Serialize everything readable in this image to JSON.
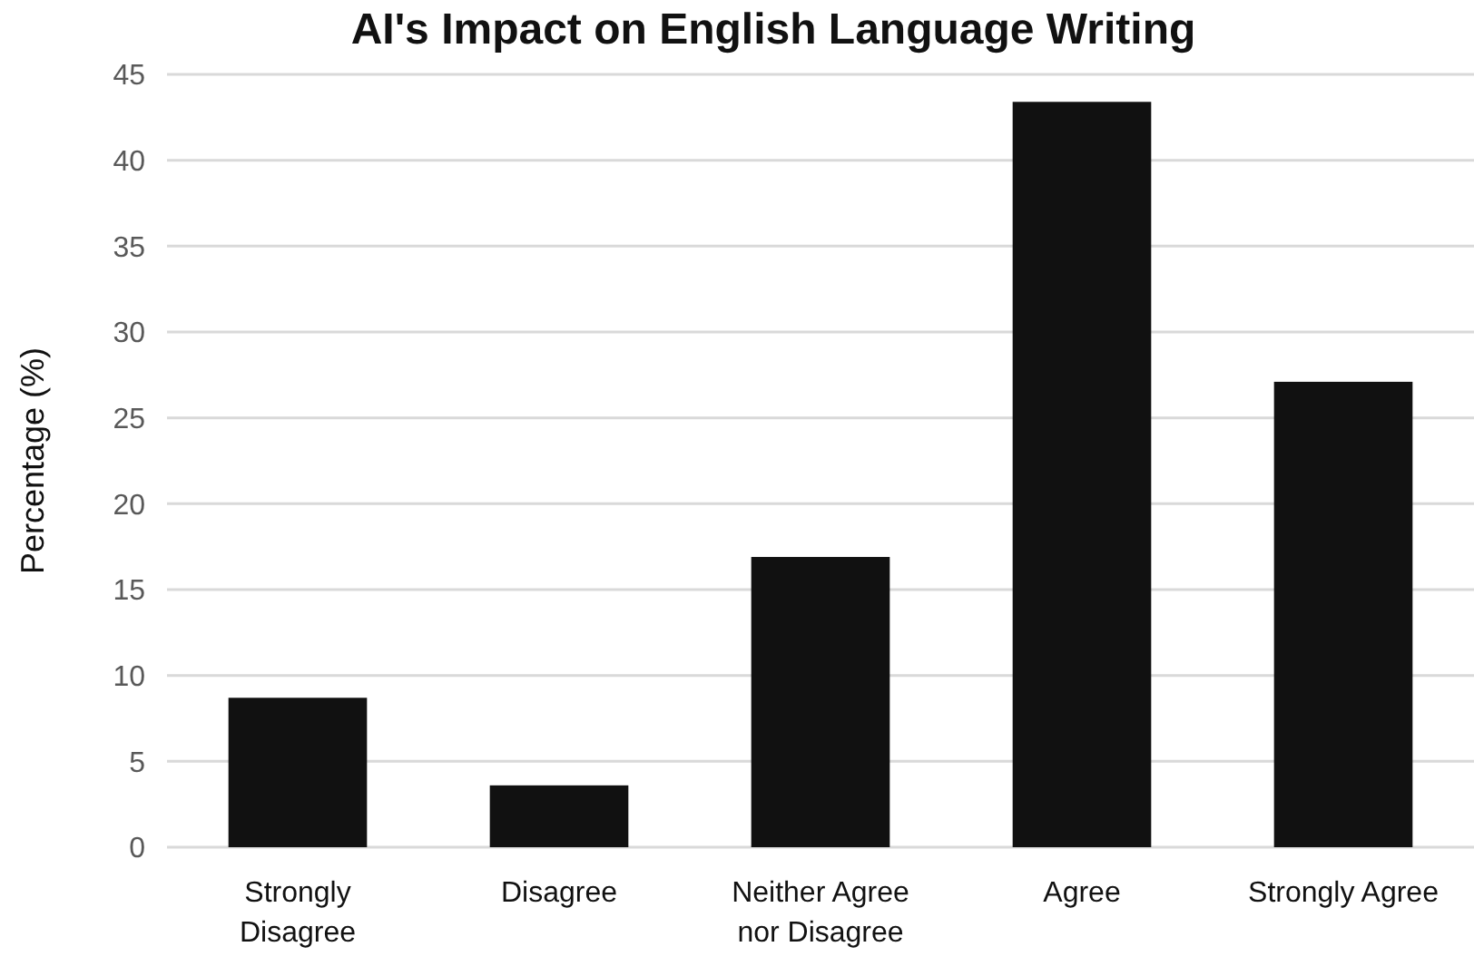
{
  "chart_data": {
    "type": "bar",
    "title": "AI's Impact on English Language Writing",
    "ylabel": "Percentage (%)",
    "categories": [
      "Strongly Disagree",
      "Disagree",
      "Neither Agree nor Disagree",
      "Agree",
      "Strongly Agree"
    ],
    "values": [
      8.7,
      3.6,
      16.9,
      43.4,
      27.1
    ],
    "color": "#111111",
    "ylim": [
      0,
      45
    ],
    "yticks": [
      0,
      5,
      10,
      15,
      20,
      25,
      30,
      35,
      40,
      45
    ],
    "grid": "y"
  }
}
